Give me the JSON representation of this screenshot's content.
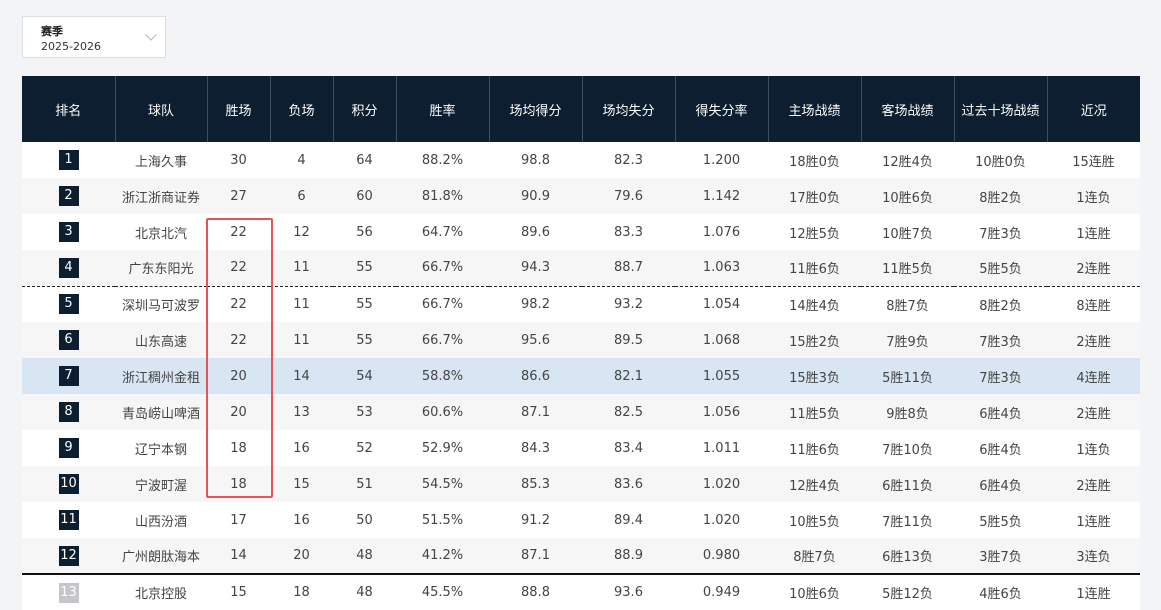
{
  "filter": {
    "label": "赛季",
    "value": "2025-2026",
    "icon": "chevron-down-icon"
  },
  "columns": [
    "排名",
    "球队",
    "胜场",
    "负场",
    "积分",
    "胜率",
    "场均得分",
    "场均失分",
    "得失分率",
    "主场战绩",
    "客场战绩",
    "过去十场战绩",
    "近况"
  ],
  "rows": [
    [
      "1",
      "上海久事",
      "30",
      "4",
      "64",
      "88.2%",
      "98.8",
      "82.3",
      "1.200",
      "18胜0负",
      "12胜4负",
      "10胜0负",
      "15连胜"
    ],
    [
      "2",
      "浙江浙商证券",
      "27",
      "6",
      "60",
      "81.8%",
      "90.9",
      "79.6",
      "1.142",
      "17胜0负",
      "10胜6负",
      "8胜2负",
      "1连负"
    ],
    [
      "3",
      "北京北汽",
      "22",
      "12",
      "56",
      "64.7%",
      "89.6",
      "83.3",
      "1.076",
      "12胜5负",
      "10胜7负",
      "7胜3负",
      "1连胜"
    ],
    [
      "4",
      "广东东阳光",
      "22",
      "11",
      "55",
      "66.7%",
      "94.3",
      "88.7",
      "1.063",
      "11胜6负",
      "11胜5负",
      "5胜5负",
      "2连胜"
    ],
    [
      "5",
      "深圳马可波罗",
      "22",
      "11",
      "55",
      "66.7%",
      "98.2",
      "93.2",
      "1.054",
      "14胜4负",
      "8胜7负",
      "8胜2负",
      "8连胜"
    ],
    [
      "6",
      "山东高速",
      "22",
      "11",
      "55",
      "66.7%",
      "95.6",
      "89.5",
      "1.068",
      "15胜2负",
      "7胜9负",
      "7胜3负",
      "2连胜"
    ],
    [
      "7",
      "浙江稠州金租",
      "20",
      "14",
      "54",
      "58.8%",
      "86.6",
      "82.1",
      "1.055",
      "15胜3负",
      "5胜11负",
      "7胜3负",
      "4连胜"
    ],
    [
      "8",
      "青岛崂山啤酒",
      "20",
      "13",
      "53",
      "60.6%",
      "87.1",
      "82.5",
      "1.056",
      "11胜5负",
      "9胜8负",
      "6胜4负",
      "2连胜"
    ],
    [
      "9",
      "辽宁本钢",
      "18",
      "16",
      "52",
      "52.9%",
      "84.3",
      "83.4",
      "1.011",
      "11胜6负",
      "7胜10负",
      "6胜4负",
      "1连负"
    ],
    [
      "10",
      "宁波町渥",
      "18",
      "15",
      "51",
      "54.5%",
      "85.3",
      "83.6",
      "1.020",
      "12胜4负",
      "6胜11负",
      "6胜4负",
      "2连胜"
    ],
    [
      "11",
      "山西汾酒",
      "17",
      "16",
      "50",
      "51.5%",
      "91.2",
      "89.4",
      "1.020",
      "10胜5负",
      "7胜11负",
      "5胜5负",
      "1连胜"
    ],
    [
      "12",
      "广州朗肽海本",
      "14",
      "20",
      "48",
      "41.2%",
      "87.1",
      "88.9",
      "0.980",
      "8胜7负",
      "6胜13负",
      "3胜7负",
      "3连负"
    ],
    [
      "13",
      "北京控股",
      "15",
      "18",
      "48",
      "45.5%",
      "88.8",
      "93.6",
      "0.949",
      "10胜6负",
      "5胜12负",
      "4胜6负",
      "1连胜"
    ]
  ]
}
